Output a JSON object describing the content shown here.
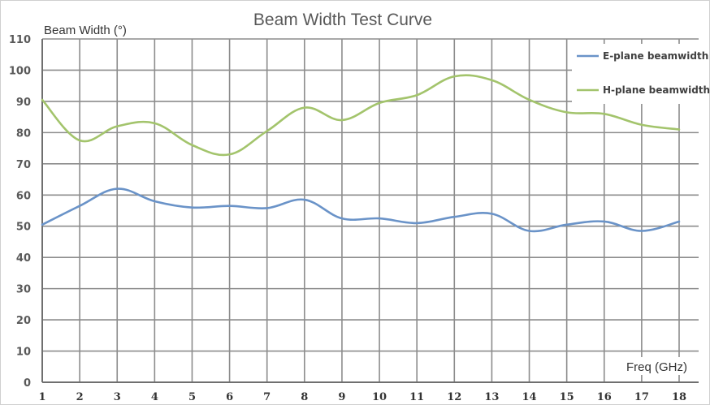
{
  "chart_data": {
    "type": "line",
    "title": "Beam Width Test Curve",
    "xlabel": "Freq (GHz)",
    "ylabel": "Beam Width (°)",
    "x": [
      1,
      2,
      3,
      4,
      5,
      6,
      7,
      8,
      9,
      10,
      11,
      12,
      13,
      14,
      15,
      16,
      17,
      18
    ],
    "xticks": [
      "1",
      "2",
      "3",
      "4",
      "5",
      "6",
      "7",
      "8",
      "9",
      "10",
      "11",
      "12",
      "13",
      "14",
      "15",
      "16",
      "17",
      "18"
    ],
    "ylim": [
      0,
      110
    ],
    "yticks": [
      "0",
      "10",
      "20",
      "30",
      "40",
      "50",
      "60",
      "70",
      "80",
      "90",
      "100",
      "110"
    ],
    "grid": true,
    "legend_position": "top-right",
    "series": [
      {
        "name": "E-plane beamwidth",
        "color": "#6a93c8",
        "values": [
          50.5,
          56.5,
          62,
          58,
          56,
          56.5,
          55.8,
          58.5,
          52.5,
          52.5,
          51,
          53,
          54,
          48.5,
          50.5,
          51.5,
          48.5,
          51.5
        ]
      },
      {
        "name": "H-plane beamwidth",
        "color": "#a3c46c",
        "values": [
          90.5,
          77.5,
          82,
          83,
          76,
          73,
          80.5,
          88,
          84,
          89.5,
          92,
          98,
          96.8,
          90.5,
          86.5,
          86,
          82.5,
          81
        ]
      }
    ]
  }
}
